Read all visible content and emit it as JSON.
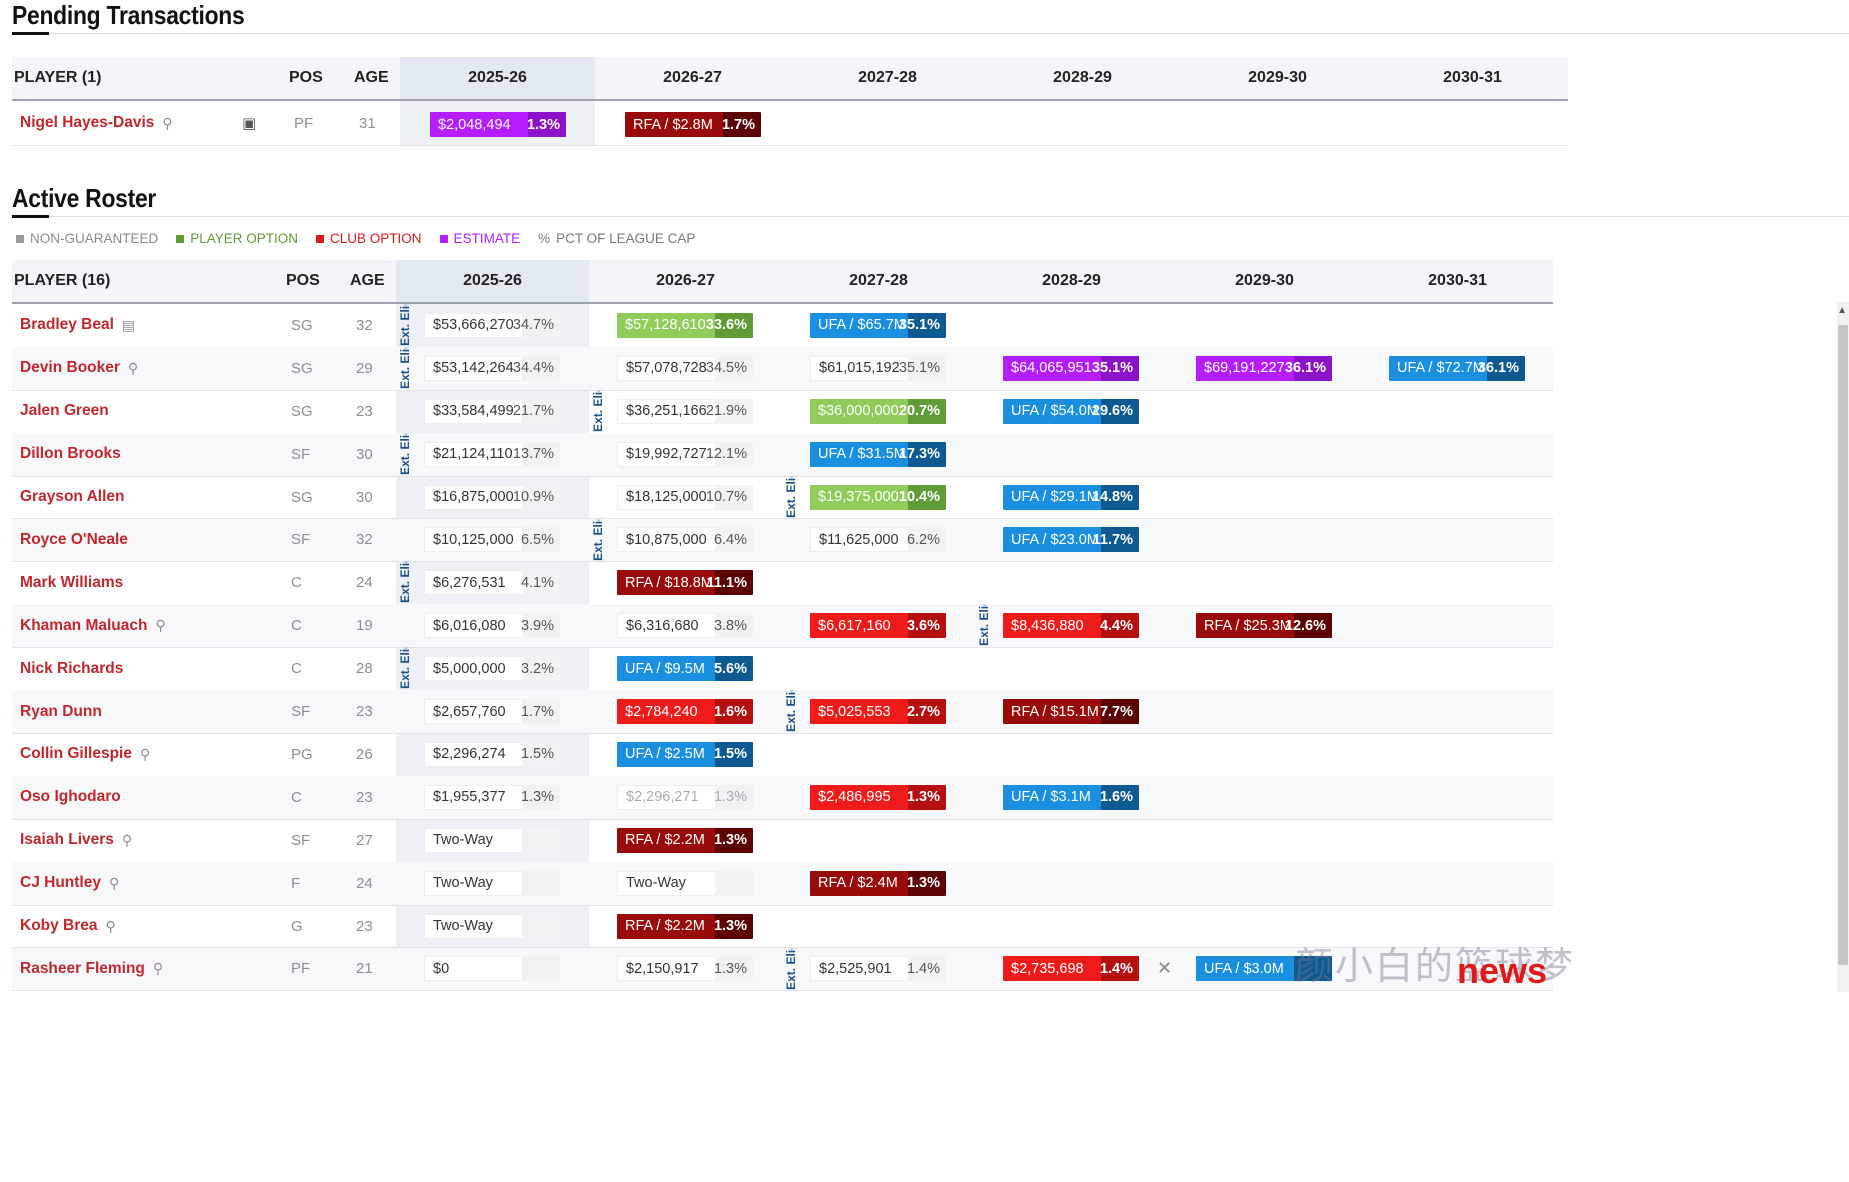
{
  "pending": {
    "title": "Pending Transactions",
    "header": {
      "player": "PLAYER (1)",
      "pos": "POS",
      "age": "AGE",
      "years": [
        "2025-26",
        "2026-27",
        "2027-28",
        "2028-29",
        "2029-30",
        "2030-31"
      ]
    },
    "row": {
      "name": "Nigel Hayes-Davis",
      "pos": "PF",
      "age": "31",
      "c1": {
        "amount": "$2,048,494",
        "pct": "1.3%",
        "style": "purple"
      },
      "c2": {
        "amount": "RFA / $2.8M",
        "pct": "1.7%",
        "style": "darkred"
      }
    }
  },
  "roster": {
    "title": "Active Roster",
    "legend": [
      "NON-GUARANTEED",
      "PLAYER OPTION",
      "CLUB OPTION",
      "ESTIMATE",
      "PCT OF LEAGUE CAP"
    ],
    "legend_colors": [
      "#9a9a9a",
      "#5f9c35",
      "#e01818",
      "#b51dff",
      "#777777"
    ],
    "header": {
      "player": "PLAYER (16)",
      "pos": "POS",
      "age": "AGE",
      "years": [
        "2025-26",
        "2026-27",
        "2027-28",
        "2028-29",
        "2029-30",
        "2030-31"
      ]
    },
    "elig_label": "Ext. Elig.",
    "players": [
      {
        "name": "Bradley Beal",
        "pos": "SG",
        "age": "32",
        "icon": "document",
        "cells": [
          {
            "a": "$53,666,270",
            "p": "34.7%",
            "s": "plain"
          },
          {
            "a": "$57,128,610",
            "p": "33.6%",
            "s": "green"
          },
          {
            "a": "UFA / $65.7M",
            "p": "35.1%",
            "s": "blue"
          },
          null,
          null,
          null
        ]
      },
      {
        "name": "Devin Booker",
        "pos": "SG",
        "age": "29",
        "icon": "bird",
        "cells": [
          {
            "a": "$53,142,264",
            "p": "34.4%",
            "s": "plain"
          },
          {
            "a": "$57,078,728",
            "p": "34.5%",
            "s": "plain"
          },
          {
            "a": "$61,015,192",
            "p": "35.1%",
            "s": "plain"
          },
          {
            "a": "$64,065,951",
            "p": "35.1%",
            "s": "purple"
          },
          {
            "a": "$69,191,227",
            "p": "36.1%",
            "s": "purple"
          },
          {
            "a": "UFA / $72.7M",
            "p": "36.1%",
            "s": "blue"
          }
        ]
      },
      {
        "name": "Jalen Green",
        "pos": "SG",
        "age": "23",
        "icon": "",
        "cells": [
          {
            "a": "$33,584,499",
            "p": "21.7%",
            "s": "plain"
          },
          {
            "a": "$36,251,166",
            "p": "21.9%",
            "s": "plain"
          },
          {
            "a": "$36,000,000",
            "p": "20.7%",
            "s": "green"
          },
          {
            "a": "UFA / $54.0M",
            "p": "29.6%",
            "s": "blue"
          },
          null,
          null
        ]
      },
      {
        "name": "Dillon Brooks",
        "pos": "SF",
        "age": "30",
        "icon": "",
        "cells": [
          {
            "a": "$21,124,110",
            "p": "13.7%",
            "s": "plain"
          },
          {
            "a": "$19,992,727",
            "p": "12.1%",
            "s": "plain"
          },
          {
            "a": "UFA / $31.5M",
            "p": "17.3%",
            "s": "blue"
          },
          null,
          null,
          null
        ]
      },
      {
        "name": "Grayson Allen",
        "pos": "SG",
        "age": "30",
        "icon": "",
        "cells": [
          {
            "a": "$16,875,000",
            "p": "10.9%",
            "s": "plain"
          },
          {
            "a": "$18,125,000",
            "p": "10.7%",
            "s": "plain"
          },
          {
            "a": "$19,375,000",
            "p": "10.4%",
            "s": "green"
          },
          {
            "a": "UFA / $29.1M",
            "p": "14.8%",
            "s": "blue"
          },
          null,
          null
        ]
      },
      {
        "name": "Royce O'Neale",
        "pos": "SF",
        "age": "32",
        "icon": "",
        "cells": [
          {
            "a": "$10,125,000",
            "p": "6.5%",
            "s": "plain"
          },
          {
            "a": "$10,875,000",
            "p": "6.4%",
            "s": "plain"
          },
          {
            "a": "$11,625,000",
            "p": "6.2%",
            "s": "plain"
          },
          {
            "a": "UFA / $23.0M",
            "p": "11.7%",
            "s": "blue"
          },
          null,
          null
        ]
      },
      {
        "name": "Mark Williams",
        "pos": "C",
        "age": "24",
        "icon": "",
        "cells": [
          {
            "a": "$6,276,531",
            "p": "4.1%",
            "s": "plain"
          },
          {
            "a": "RFA / $18.8M",
            "p": "11.1%",
            "s": "darkred"
          },
          null,
          null,
          null,
          null
        ]
      },
      {
        "name": "Khaman Maluach",
        "pos": "C",
        "age": "19",
        "icon": "bird",
        "cells": [
          {
            "a": "$6,016,080",
            "p": "3.9%",
            "s": "plain"
          },
          {
            "a": "$6,316,680",
            "p": "3.8%",
            "s": "plain"
          },
          {
            "a": "$6,617,160",
            "p": "3.6%",
            "s": "red"
          },
          {
            "a": "$8,436,880",
            "p": "4.4%",
            "s": "red"
          },
          {
            "a": "RFA / $25.3M",
            "p": "12.6%",
            "s": "darkred"
          },
          null
        ]
      },
      {
        "name": "Nick Richards",
        "pos": "C",
        "age": "28",
        "icon": "",
        "cells": [
          {
            "a": "$5,000,000",
            "p": "3.2%",
            "s": "plain"
          },
          {
            "a": "UFA / $9.5M",
            "p": "5.6%",
            "s": "blue"
          },
          null,
          null,
          null,
          null
        ]
      },
      {
        "name": "Ryan Dunn",
        "pos": "SF",
        "age": "23",
        "icon": "",
        "cells": [
          {
            "a": "$2,657,760",
            "p": "1.7%",
            "s": "plain"
          },
          {
            "a": "$2,784,240",
            "p": "1.6%",
            "s": "red"
          },
          {
            "a": "$5,025,553",
            "p": "2.7%",
            "s": "red"
          },
          {
            "a": "RFA / $15.1M",
            "p": "7.7%",
            "s": "darkred"
          },
          null,
          null
        ]
      },
      {
        "name": "Collin Gillespie",
        "pos": "PG",
        "age": "26",
        "icon": "bird",
        "cells": [
          {
            "a": "$2,296,274",
            "p": "1.5%",
            "s": "plain"
          },
          {
            "a": "UFA / $2.5M",
            "p": "1.5%",
            "s": "blue"
          },
          null,
          null,
          null,
          null
        ]
      },
      {
        "name": "Oso Ighodaro",
        "pos": "C",
        "age": "23",
        "icon": "",
        "cells": [
          {
            "a": "$1,955,377",
            "p": "1.3%",
            "s": "plain"
          },
          {
            "a": "$2,296,271",
            "p": "1.3%",
            "s": "faded"
          },
          {
            "a": "$2,486,995",
            "p": "1.3%",
            "s": "red"
          },
          {
            "a": "UFA / $3.1M",
            "p": "1.6%",
            "s": "blue"
          },
          null,
          null
        ]
      },
      {
        "name": "Isaiah Livers",
        "pos": "SF",
        "age": "27",
        "icon": "bird",
        "cells": [
          {
            "a": "Two-Way",
            "p": "",
            "s": "plain"
          },
          {
            "a": "RFA / $2.2M",
            "p": "1.3%",
            "s": "darkred"
          },
          null,
          null,
          null,
          null
        ]
      },
      {
        "name": "CJ Huntley",
        "pos": "F",
        "age": "24",
        "icon": "bird",
        "cells": [
          {
            "a": "Two-Way",
            "p": "",
            "s": "plain"
          },
          {
            "a": "Two-Way",
            "p": "",
            "s": "plain"
          },
          {
            "a": "RFA / $2.4M",
            "p": "1.3%",
            "s": "darkred"
          },
          null,
          null,
          null
        ]
      },
      {
        "name": "Koby Brea",
        "pos": "G",
        "age": "23",
        "icon": "bird",
        "cells": [
          {
            "a": "Two-Way",
            "p": "",
            "s": "plain"
          },
          {
            "a": "RFA / $2.2M",
            "p": "1.3%",
            "s": "darkred"
          },
          null,
          null,
          null,
          null
        ]
      },
      {
        "name": "Rasheer Fleming",
        "pos": "PF",
        "age": "21",
        "icon": "bird",
        "cells": [
          {
            "a": "$0",
            "p": "",
            "s": "plain"
          },
          {
            "a": "$2,150,917",
            "p": "1.3%",
            "s": "plain"
          },
          {
            "a": "$2,525,901",
            "p": "1.4%",
            "s": "plain"
          },
          {
            "a": "$2,735,698",
            "p": "1.4%",
            "s": "red"
          },
          {
            "a": "UFA / $3.0M",
            "p": "",
            "s": "blue"
          },
          null
        ]
      }
    ]
  },
  "watermark": {
    "cn": "颜小白的篮球梦",
    "news": "news"
  }
}
